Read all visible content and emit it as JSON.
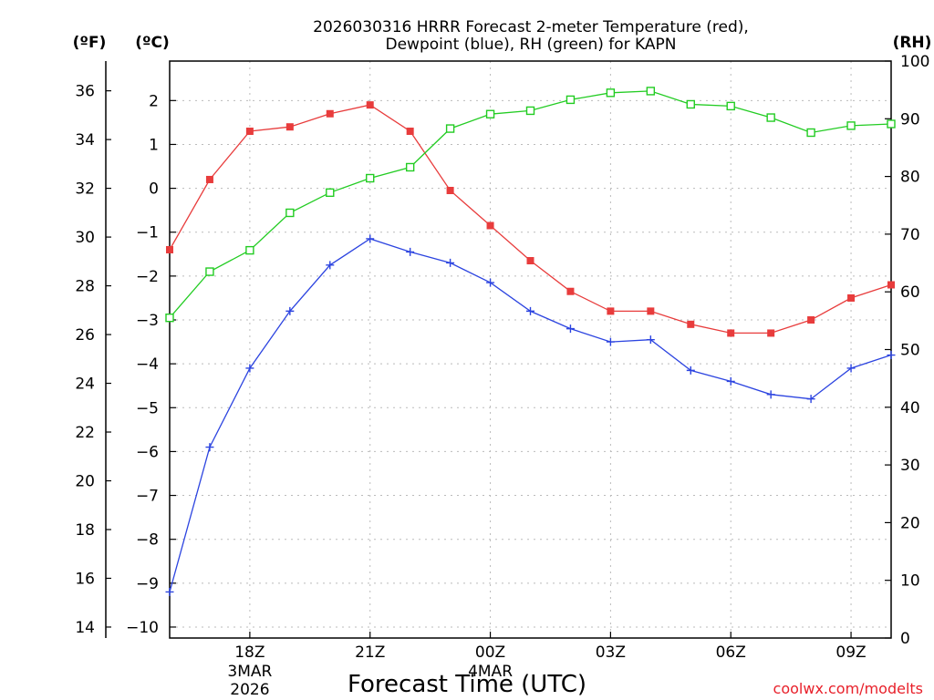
{
  "chart_data": {
    "type": "line",
    "title_line1": "2026030316 HRRR Forecast 2-meter Temperature (red),",
    "title_line2": "Dewpoint (blue), RH (green) for KAPN",
    "xlabel": "Forecast Time (UTC)",
    "watermark": "coolwx.com/modelts",
    "unit_labels": {
      "fahrenheit": "(ºF)",
      "celsius": "(ºC)",
      "rh": "(RH)"
    },
    "x_hours_since_16z": [
      0,
      1,
      2,
      3,
      4,
      5,
      6,
      7,
      8,
      9,
      10,
      11,
      12,
      13,
      14,
      15,
      16,
      17,
      18
    ],
    "xlim": [
      0,
      18
    ],
    "x_ticks": [
      {
        "hour": 2,
        "label": "18Z",
        "date_line1": "3MAR",
        "date_line2": "2026"
      },
      {
        "hour": 5,
        "label": "21Z"
      },
      {
        "hour": 8,
        "label": "00Z",
        "date_line1": "4MAR"
      },
      {
        "hour": 11,
        "label": "03Z"
      },
      {
        "hour": 14,
        "label": "06Z"
      },
      {
        "hour": 17,
        "label": "09Z"
      }
    ],
    "celsius_ylim": [
      -10.25,
      2.9
    ],
    "celsius_ticks": [
      2,
      1,
      0,
      -1,
      -2,
      -3,
      -4,
      -5,
      -6,
      -7,
      -8,
      -9,
      -10
    ],
    "fahrenheit_ticks": [
      36,
      34,
      32,
      30,
      28,
      26,
      24,
      22,
      20,
      18,
      16,
      14
    ],
    "rh_ylim": [
      0,
      100
    ],
    "rh_ticks": [
      100,
      90,
      80,
      70,
      60,
      50,
      40,
      30,
      20,
      10,
      0
    ],
    "series": [
      {
        "name": "2-meter Temperature",
        "unit": "C",
        "color": "#e83c3c",
        "marker": "filled-square",
        "values": [
          -1.4,
          0.2,
          1.3,
          1.4,
          1.7,
          1.9,
          1.3,
          -0.05,
          -0.85,
          -1.65,
          -2.35,
          -2.8,
          -2.8,
          -3.1,
          -3.3,
          -3.3,
          -3.0,
          -2.5,
          -2.2
        ]
      },
      {
        "name": "Dewpoint",
        "unit": "C",
        "color": "#2c44e0",
        "marker": "plus",
        "values": [
          -9.2,
          -5.9,
          -4.1,
          -2.8,
          -1.75,
          -1.15,
          -1.45,
          -1.7,
          -2.15,
          -2.8,
          -3.2,
          -3.5,
          -3.45,
          -4.15,
          -4.4,
          -4.7,
          -4.8,
          -4.1,
          -3.8
        ]
      },
      {
        "name": "RH",
        "unit": "%",
        "color": "#22cc22",
        "marker": "open-square",
        "values": [
          55.5,
          63.5,
          67.2,
          73.7,
          77.2,
          79.7,
          81.6,
          88.3,
          90.8,
          91.4,
          93.3,
          94.5,
          94.8,
          92.5,
          92.2,
          90.2,
          87.6,
          88.8,
          89.1
        ]
      }
    ]
  }
}
